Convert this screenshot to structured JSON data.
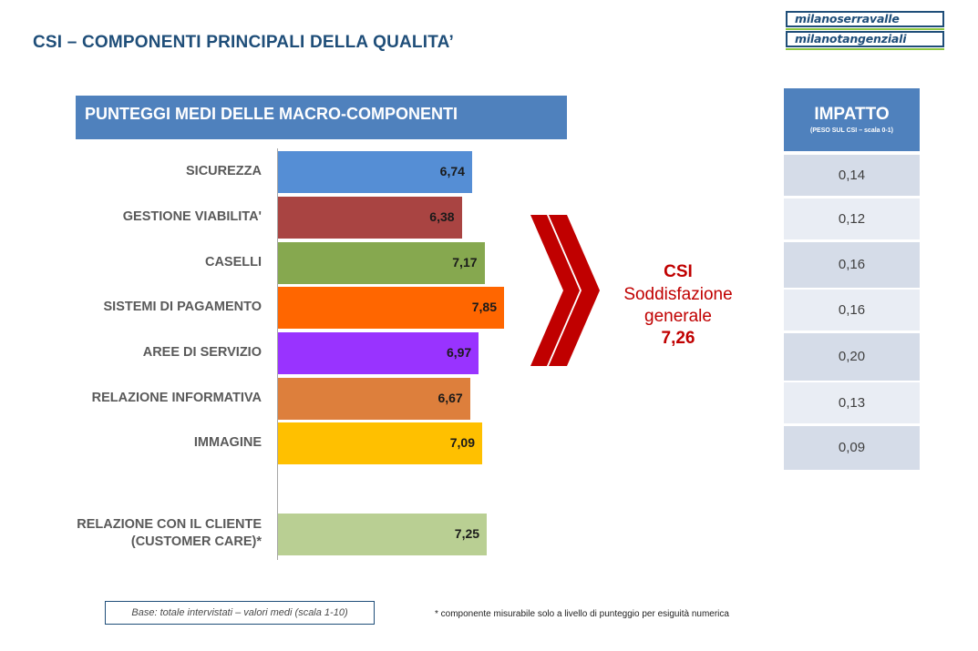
{
  "page": {
    "title": "CSI – COMPONENTI PRINCIPALI DELLA QUALITA’",
    "logo_line1": "milanoserravalle",
    "logo_line2": "milanotangenziali"
  },
  "section_header": "PUNTEGGI MEDI DELLE MACRO-COMPONENTI",
  "chart_data": {
    "type": "bar",
    "orientation": "horizontal",
    "title": "PUNTEGGI MEDI DELLE MACRO-COMPONENTI",
    "categories": [
      "SICUREZZA",
      "GESTIONE VIABILITA'",
      "CASELLI",
      "SISTEMI DI PAGAMENTO",
      "AREE DI SERVIZIO",
      "RELAZIONE INFORMATIVA",
      "IMMAGINE",
      "RELAZIONE CON IL CLIENTE (CUSTOMER CARE)*"
    ],
    "category_lines": [
      [
        "SICUREZZA"
      ],
      [
        "GESTIONE VIABILITA'"
      ],
      [
        "CASELLI"
      ],
      [
        "SISTEMI DI PAGAMENTO"
      ],
      [
        "AREE DI SERVIZIO"
      ],
      [
        "RELAZIONE INFORMATIVA"
      ],
      [
        "IMMAGINE"
      ],
      [
        "RELAZIONE CON IL CLIENTE",
        "(CUSTOMER CARE)*"
      ]
    ],
    "values": [
      6.74,
      6.38,
      7.17,
      7.85,
      6.97,
      6.67,
      7.09,
      7.25
    ],
    "value_labels": [
      "6,74",
      "6,38",
      "7,17",
      "7,85",
      "6,97",
      "6,67",
      "7,09",
      "7,25"
    ],
    "bar_colors": [
      "#558ed5",
      "#a94442",
      "#86a84f",
      "#ff6600",
      "#9933ff",
      "#dd7f3c",
      "#ffc000",
      "#b9cf93"
    ],
    "xlim": [
      0,
      10
    ],
    "grid": false,
    "legend": "none"
  },
  "csi": {
    "title": "CSI",
    "line1": "Soddisfazione",
    "line2": "generale",
    "value": "7,26"
  },
  "impact": {
    "title": "IMPATTO",
    "subtitle": "(PESO SUL CSI – scala 0-1)",
    "values": [
      "0,14",
      "0,12",
      "0,16",
      "0,16",
      "0,20",
      "0,13",
      "0,09"
    ]
  },
  "notes": {
    "base": "Base: totale intervistati – valori medi (scala 1-10)",
    "footnote": "* componente misurabile solo a livello di punteggio per esiguità numerica"
  },
  "colors": {
    "accent": "#4f81bd",
    "title": "#1f4e79",
    "csi": "#c00000",
    "arrow": "#c00000"
  }
}
